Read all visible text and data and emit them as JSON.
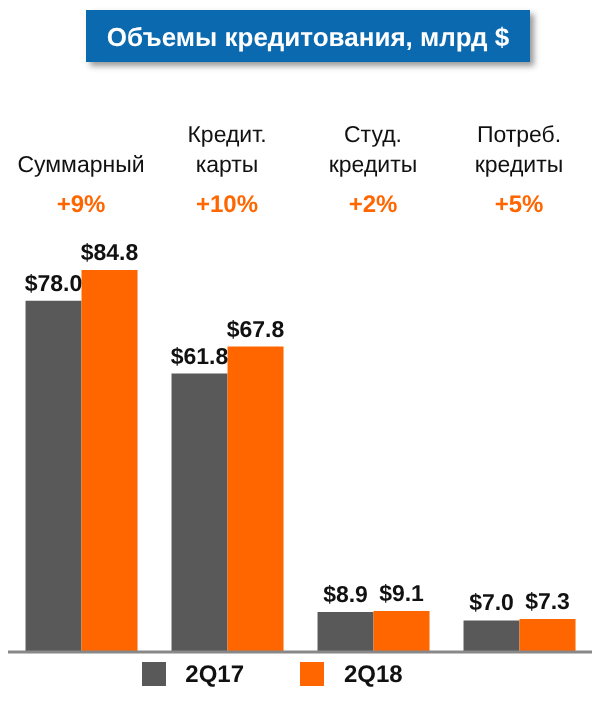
{
  "chart_data": {
    "type": "bar",
    "title": "Объемы кредитования, млрд $",
    "categories": [
      "Суммарный",
      "Кредит. карты",
      "Студ. кредиты",
      "Потреб. кредиты"
    ],
    "series": [
      {
        "name": "2Q17",
        "color": "#595959",
        "values": [
          78.0,
          61.8,
          8.9,
          7.0
        ],
        "value_labels": [
          "$78.0",
          "$61.8",
          "$8.9",
          "$7.0"
        ]
      },
      {
        "name": "2Q18",
        "color": "#ff6600",
        "values": [
          84.8,
          67.8,
          9.1,
          7.3
        ],
        "value_labels": [
          "$84.8",
          "$67.8",
          "$9.1",
          "$7.3"
        ]
      }
    ],
    "annotations": [
      "+9%",
      "+10%",
      "+2%",
      "+5%"
    ],
    "tick_labels": "x",
    "legend": "bottom"
  }
}
